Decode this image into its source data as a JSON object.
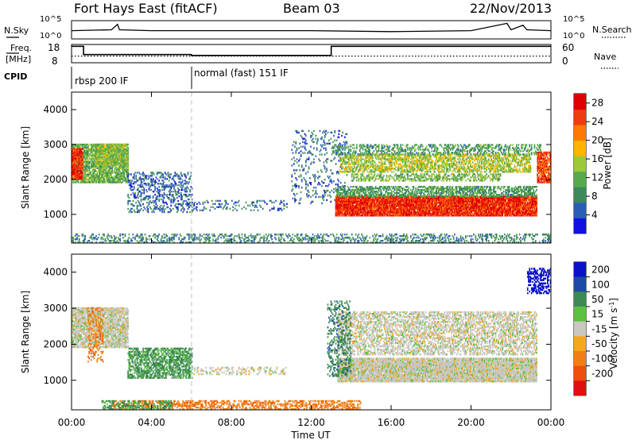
{
  "header": {
    "station": "Fort Hays East (fitACF)",
    "beam": "Beam 03",
    "date": "22/Nov/2013"
  },
  "noise_panel": {
    "left_label": "N.Sky",
    "right_label": "N.Search",
    "left_ticks": [
      "10^5",
      "10^0"
    ],
    "right_ticks": [
      "10^5",
      "10^0"
    ]
  },
  "freq_panel": {
    "left_label_line1": "Freq.",
    "left_label_line2": "[MHz]",
    "right_label": "Nave",
    "left_ticks": [
      "18",
      "8"
    ],
    "right_ticks": [
      "60",
      "0"
    ]
  },
  "cpid": {
    "label": "CPID",
    "segments": [
      {
        "name": "rbsp 200 IF",
        "start_hour": 0
      },
      {
        "name": "normal (fast) 151 IF",
        "start_hour": 6
      }
    ]
  },
  "time_axis": {
    "label": "Time UT",
    "ticks": [
      "00:00",
      "04:00",
      "08:00",
      "12:00",
      "16:00",
      "20:00",
      "00:00"
    ]
  },
  "colors": {
    "power": [
      "#1010e0",
      "#2a5db8",
      "#3c8a5a",
      "#58a84c",
      "#9cc83a",
      "#ffb400",
      "#ff7800",
      "#f03a10",
      "#e00000"
    ],
    "velocity": [
      "#0a12c8",
      "#1e4aa6",
      "#3e8a54",
      "#5cc040",
      "#c8c8c0",
      "#f5a71e",
      "#f07e14",
      "#ef4e0c",
      "#e01010"
    ],
    "gray": "#c8c8c0"
  },
  "chart_data": [
    {
      "type": "line",
      "panel": "noise",
      "x_unit": "hours UT",
      "xlim": [
        0,
        24
      ],
      "ylabel": "N.Sky",
      "ylog": true,
      "ylim": [
        "10^0",
        "10^5"
      ],
      "series": [
        {
          "name": "N.Sky",
          "x": [
            0,
            2,
            2.3,
            2.4,
            4,
            8,
            12,
            16,
            20,
            21.8,
            22.0,
            22.6,
            22.8,
            24
          ],
          "y_level": [
            0.45,
            0.5,
            0.8,
            0.5,
            0.45,
            0.45,
            0.45,
            0.4,
            0.45,
            0.85,
            0.5,
            0.75,
            0.5,
            0.45
          ]
        }
      ]
    },
    {
      "type": "line",
      "panel": "frequency",
      "x_unit": "hours UT",
      "xlim": [
        0,
        24
      ],
      "ylim": [
        8,
        18
      ],
      "series": [
        {
          "name": "Freq.",
          "x": [
            0,
            0.6,
            0.6,
            6,
            6,
            13,
            13,
            24
          ],
          "y": [
            17,
            17,
            12.5,
            12.5,
            12.0,
            12.0,
            17,
            17
          ]
        },
        {
          "name": "Nave",
          "x": [
            0,
            24
          ],
          "y2": [
            22,
            22
          ]
        }
      ]
    },
    {
      "type": "heatmap",
      "panel": "power",
      "ylabel": "Slant Range [km]",
      "xlabel": "Time UT",
      "xlim": [
        0,
        24
      ],
      "ylim": [
        180,
        4500
      ],
      "yticks": [
        1000,
        2000,
        3000,
        4000
      ],
      "colorbar": {
        "label": "Power [dB]",
        "ticks": [
          4,
          8,
          12,
          16,
          20,
          24,
          28
        ],
        "range": [
          0,
          30
        ]
      },
      "regions": [
        {
          "x": [
            0,
            2.8
          ],
          "y": [
            1900,
            3000
          ],
          "level": 12,
          "density": 0.8
        },
        {
          "x": [
            0,
            0.5
          ],
          "y": [
            2000,
            2900
          ],
          "level": 26,
          "density": 0.9
        },
        {
          "x": [
            1.2,
            2.8
          ],
          "y": [
            2400,
            3000
          ],
          "level": 14,
          "density": 0.7
        },
        {
          "x": [
            2.8,
            6.0
          ],
          "y": [
            1050,
            2200
          ],
          "level": 6,
          "density": 0.3
        },
        {
          "x": [
            6.0,
            10.8
          ],
          "y": [
            1100,
            1400
          ],
          "level": 6,
          "density": 0.2
        },
        {
          "x": [
            11.0,
            13.8
          ],
          "y": [
            1300,
            3400
          ],
          "level": 6,
          "density": 0.15
        },
        {
          "x": [
            13.2,
            23.3
          ],
          "y": [
            950,
            1500
          ],
          "level": 26,
          "density": 0.95
        },
        {
          "x": [
            13.2,
            23.3
          ],
          "y": [
            1500,
            1800
          ],
          "level": 10,
          "density": 0.6
        },
        {
          "x": [
            13.4,
            23.0
          ],
          "y": [
            2200,
            2700
          ],
          "level": 15,
          "density": 0.6
        },
        {
          "x": [
            14.0,
            21.5
          ],
          "y": [
            1950,
            2150
          ],
          "level": 13,
          "density": 0.5
        },
        {
          "x": [
            13.0,
            23.5
          ],
          "y": [
            2700,
            3000
          ],
          "level": 10,
          "density": 0.4
        },
        {
          "x": [
            23.3,
            24
          ],
          "y": [
            1900,
            2800
          ],
          "level": 24,
          "density": 0.8
        },
        {
          "x": [
            0,
            24
          ],
          "y": [
            180,
            420
          ],
          "level": 8,
          "density": 0.35
        }
      ]
    },
    {
      "type": "heatmap",
      "panel": "velocity",
      "ylabel": "Slant Range [km]",
      "xlabel": "Time UT",
      "xlim": [
        0,
        24
      ],
      "ylim": [
        180,
        4500
      ],
      "yticks": [
        1000,
        2000,
        3000,
        4000
      ],
      "colorbar": {
        "label": "Velocity [m s^-1]",
        "ticks": [
          "200",
          "100",
          "50",
          "15",
          "-15",
          "-50",
          "-100",
          "-200"
        ],
        "range": [
          -250,
          250
        ]
      },
      "regions": [
        {
          "x": [
            0,
            2.8
          ],
          "y": [
            1900,
            3000
          ],
          "value": 0,
          "density": 0.85
        },
        {
          "x": [
            0.8,
            1.6
          ],
          "y": [
            1500,
            3000
          ],
          "value": -60,
          "density": 0.3
        },
        {
          "x": [
            2.8,
            6.0
          ],
          "y": [
            1050,
            1900
          ],
          "value": 40,
          "density": 0.6
        },
        {
          "x": [
            6.0,
            10.8
          ],
          "y": [
            1150,
            1350
          ],
          "value": 0,
          "density": 0.3
        },
        {
          "x": [
            13.3,
            23.3
          ],
          "y": [
            950,
            1600
          ],
          "value": 0,
          "density": 0.95
        },
        {
          "x": [
            13.3,
            23.3
          ],
          "y": [
            1700,
            2900
          ],
          "value": 0,
          "density": 0.55
        },
        {
          "x": [
            12.8,
            14.0
          ],
          "y": [
            1100,
            3200
          ],
          "value": 60,
          "density": 0.3
        },
        {
          "x": [
            22.8,
            24
          ],
          "y": [
            3400,
            4100
          ],
          "value": 180,
          "density": 0.5
        },
        {
          "x": [
            2.0,
            14.5
          ],
          "y": [
            180,
            420
          ],
          "value": -60,
          "density": 0.5
        },
        {
          "x": [
            1.5,
            5.0
          ],
          "y": [
            180,
            420
          ],
          "value": 40,
          "density": 0.4
        }
      ]
    }
  ]
}
